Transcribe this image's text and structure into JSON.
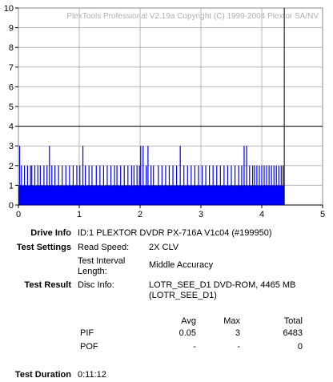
{
  "chart_data": {
    "type": "bar",
    "watermark": "PlexTools Professional V2.19a Copyright (C) 1999-2004 Plextor SA/NV",
    "xlim": [
      0,
      5
    ],
    "ylim": [
      0,
      10
    ],
    "x_ticks": [
      "0",
      "1",
      "2",
      "3",
      "4",
      "5"
    ],
    "y_ticks": [
      "0",
      "1",
      "2",
      "3",
      "4",
      "5",
      "6",
      "7",
      "8",
      "9",
      "10"
    ],
    "threshold_y": 4,
    "end_x": 4.37,
    "series": [
      {
        "color": "#0000ff",
        "points": [
          [
            0.02,
            3
          ],
          [
            0.05,
            2
          ],
          [
            0.1,
            2
          ],
          [
            0.15,
            2
          ],
          [
            0.2,
            2
          ],
          [
            0.22,
            2
          ],
          [
            0.27,
            2
          ],
          [
            0.32,
            2
          ],
          [
            0.36,
            2
          ],
          [
            0.42,
            2
          ],
          [
            0.47,
            2
          ],
          [
            0.51,
            3
          ],
          [
            0.55,
            2
          ],
          [
            0.6,
            2
          ],
          [
            0.66,
            2
          ],
          [
            0.72,
            2
          ],
          [
            0.78,
            2
          ],
          [
            0.84,
            2
          ],
          [
            0.9,
            2
          ],
          [
            0.96,
            2
          ],
          [
            1.01,
            2
          ],
          [
            1.06,
            3
          ],
          [
            1.1,
            2
          ],
          [
            1.16,
            2
          ],
          [
            1.21,
            2
          ],
          [
            1.28,
            2
          ],
          [
            1.34,
            2
          ],
          [
            1.4,
            2
          ],
          [
            1.46,
            2
          ],
          [
            1.52,
            2
          ],
          [
            1.58,
            2
          ],
          [
            1.62,
            2
          ],
          [
            1.68,
            2
          ],
          [
            1.74,
            2
          ],
          [
            1.8,
            2
          ],
          [
            1.86,
            2
          ],
          [
            1.9,
            2
          ],
          [
            1.95,
            2
          ],
          [
            1.99,
            2
          ],
          [
            2.01,
            3
          ],
          [
            2.05,
            3
          ],
          [
            2.1,
            2
          ],
          [
            2.13,
            3
          ],
          [
            2.18,
            2
          ],
          [
            2.22,
            2
          ],
          [
            2.3,
            2
          ],
          [
            2.36,
            2
          ],
          [
            2.42,
            2
          ],
          [
            2.48,
            2
          ],
          [
            2.54,
            2
          ],
          [
            2.6,
            2
          ],
          [
            2.66,
            3
          ],
          [
            2.72,
            2
          ],
          [
            2.78,
            2
          ],
          [
            2.84,
            2
          ],
          [
            2.9,
            2
          ],
          [
            2.96,
            2
          ],
          [
            3.02,
            2
          ],
          [
            3.08,
            2
          ],
          [
            3.14,
            2
          ],
          [
            3.2,
            2
          ],
          [
            3.26,
            2
          ],
          [
            3.32,
            2
          ],
          [
            3.38,
            2
          ],
          [
            3.44,
            2
          ],
          [
            3.5,
            2
          ],
          [
            3.56,
            2
          ],
          [
            3.62,
            2
          ],
          [
            3.67,
            2
          ],
          [
            3.71,
            3
          ],
          [
            3.75,
            3
          ],
          [
            3.8,
            2
          ],
          [
            3.85,
            2
          ],
          [
            3.88,
            2
          ],
          [
            3.92,
            2
          ],
          [
            3.96,
            2
          ],
          [
            4.0,
            2
          ],
          [
            4.04,
            2
          ],
          [
            4.08,
            2
          ],
          [
            4.12,
            2
          ],
          [
            4.16,
            2
          ],
          [
            4.2,
            2
          ],
          [
            4.24,
            2
          ],
          [
            4.28,
            2
          ],
          [
            4.32,
            2
          ],
          [
            4.35,
            2
          ]
        ]
      }
    ]
  },
  "info": {
    "drive_info_label": "Drive Info",
    "drive_info_value": "ID:1 PLEXTOR DVDR PX-716A V1c04 (#199950)",
    "test_settings_label": "Test Settings",
    "read_speed_label": "Read Speed:",
    "read_speed_value": "2X CLV",
    "test_interval_label": "Test Interval Length:",
    "test_interval_value": "Middle Accuracy",
    "test_result_label": "Test Result",
    "disc_info_label": "Disc Info:",
    "disc_info_value": "LOTR_SEE_D1 DVD-ROM, 4465 MB (LOTR_SEE_D1)",
    "col_avg": "Avg",
    "col_max": "Max",
    "col_total": "Total",
    "rows": [
      {
        "name": "PIF",
        "avg": "0.05",
        "max": "3",
        "total": "6483"
      },
      {
        "name": "POF",
        "avg": "-",
        "max": "-",
        "total": "0"
      }
    ],
    "test_duration_label": "Test Duration",
    "test_duration_value": "0:11:12"
  }
}
